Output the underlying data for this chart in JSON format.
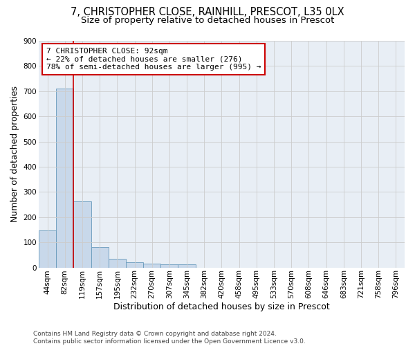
{
  "title_line1": "7, CHRISTOPHER CLOSE, RAINHILL, PRESCOT, L35 0LX",
  "title_line2": "Size of property relative to detached houses in Prescot",
  "xlabel": "Distribution of detached houses by size in Prescot",
  "ylabel": "Number of detached properties",
  "footnote": "Contains HM Land Registry data © Crown copyright and database right 2024.\nContains public sector information licensed under the Open Government Licence v3.0.",
  "bin_labels": [
    "44sqm",
    "82sqm",
    "119sqm",
    "157sqm",
    "195sqm",
    "232sqm",
    "270sqm",
    "307sqm",
    "345sqm",
    "382sqm",
    "420sqm",
    "458sqm",
    "495sqm",
    "533sqm",
    "570sqm",
    "608sqm",
    "646sqm",
    "683sqm",
    "721sqm",
    "758sqm",
    "796sqm"
  ],
  "bar_heights": [
    148,
    710,
    263,
    82,
    35,
    22,
    14,
    12,
    12,
    0,
    0,
    0,
    0,
    0,
    0,
    0,
    0,
    0,
    0,
    0,
    0
  ],
  "bar_color": "#c8d8ea",
  "bar_edge_color": "#6699bb",
  "vline_x": 1.5,
  "vline_color": "#cc0000",
  "annotation_text": "7 CHRISTOPHER CLOSE: 92sqm\n← 22% of detached houses are smaller (276)\n78% of semi-detached houses are larger (995) →",
  "annotation_box_color": "#ffffff",
  "annotation_box_edge": "#cc0000",
  "ylim": [
    0,
    900
  ],
  "yticks": [
    0,
    100,
    200,
    300,
    400,
    500,
    600,
    700,
    800,
    900
  ],
  "grid_color": "#cccccc",
  "bg_color": "#e8eef5",
  "title_fontsize": 10.5,
  "subtitle_fontsize": 9.5,
  "axis_label_fontsize": 9,
  "tick_fontsize": 7.5,
  "footnote_fontsize": 6.5,
  "annotation_fontsize": 8
}
